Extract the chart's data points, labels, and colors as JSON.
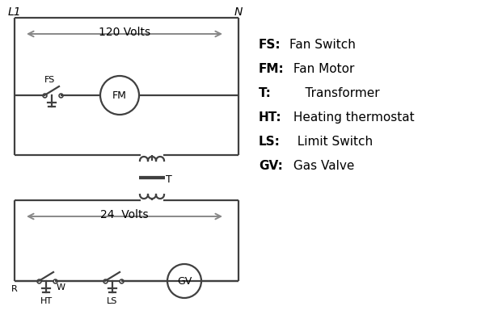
{
  "background": "#ffffff",
  "line_color": "#404040",
  "line_width": 1.6,
  "arrow_color": "#888888",
  "legend_items": [
    [
      "FS:",
      "Fan Switch"
    ],
    [
      "FM:",
      " Fan Motor"
    ],
    [
      "T:",
      "    Transformer"
    ],
    [
      "HT:",
      " Heating thermostat"
    ],
    [
      "LS:",
      "  Limit Switch"
    ],
    [
      "GV:",
      " Gas Valve"
    ]
  ],
  "label_L1": "L1",
  "label_N": "N",
  "label_120": "120 Volts",
  "label_24": "24  Volts",
  "label_T": "T",
  "label_R": "R",
  "label_W": "W",
  "label_HT": "HT",
  "label_LS": "LS",
  "label_FS": "FS",
  "label_FM": "FM",
  "label_GV": "GV"
}
